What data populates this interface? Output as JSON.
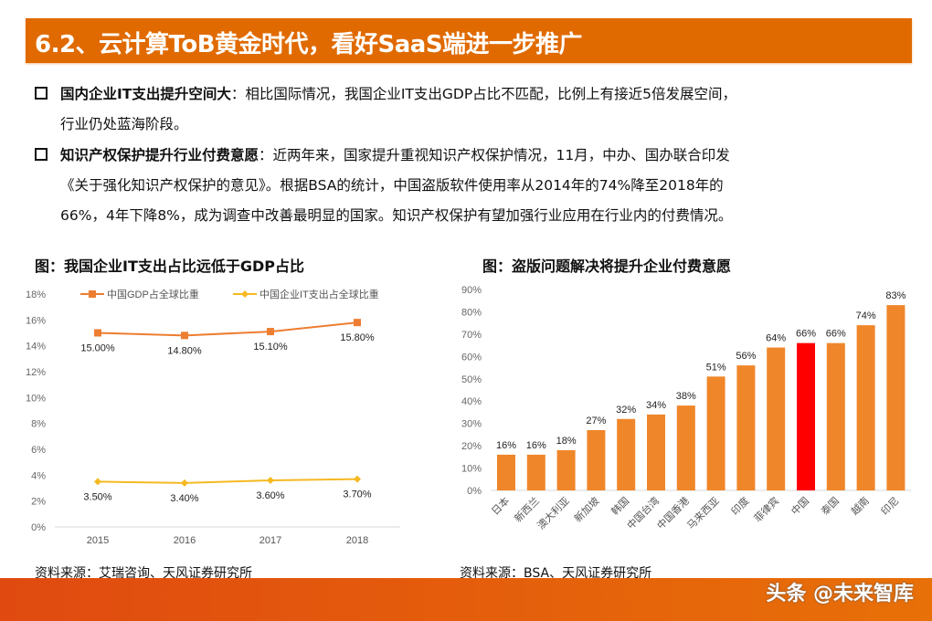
{
  "header": {
    "title": "6.2、云计算ToB黄金时代，看好SaaS端进一步推广"
  },
  "bullets": [
    {
      "bold": "国内企业IT支出提升空间大",
      "text": "：相比国际情况，我国企业IT支出GDP占比不匹配，比例上有接近5倍发展空间，",
      "cont": "行业仍处蓝海阶段。"
    },
    {
      "bold": "知识产权保护提升行业付费意愿",
      "text": "：近两年来，国家提升重视知识产权保护情况，11月，中办、国办联合印发",
      "cont": "《关于强化知识产权保护的意见》。根据BSA的统计，中国盗版软件使用率从2014年的74%降至2018年的",
      "cont2": "66%，4年下降8%，成为调查中改善最明显的国家。知识产权保护有望加强行业应用在行业内的付费情况。"
    }
  ],
  "footer": {
    "watermark": "头条 @未来智库"
  },
  "chart_data": [
    {
      "type": "line",
      "title": "图：我国企业IT支出占比远低于GDP占比",
      "source": "资料来源：艾瑞咨询、天风证券研究所",
      "categories": [
        "2015",
        "2016",
        "2017",
        "2018"
      ],
      "series": [
        {
          "name": "中国GDP占全球比重",
          "values": [
            15.0,
            14.8,
            15.1,
            15.8
          ],
          "labels": [
            "15.00%",
            "14.80%",
            "15.10%",
            "15.80%"
          ],
          "color": "#ed7d31",
          "marker": "square"
        },
        {
          "name": "中国企业IT支出占全球比重",
          "values": [
            3.5,
            3.4,
            3.6,
            3.7
          ],
          "labels": [
            "3.50%",
            "3.40%",
            "3.60%",
            "3.70%"
          ],
          "color": "#f5b921",
          "marker": "diamond"
        }
      ],
      "ylim": [
        0,
        18
      ],
      "yticks": [
        "0%",
        "2%",
        "4%",
        "6%",
        "8%",
        "10%",
        "12%",
        "14%",
        "16%",
        "18%"
      ],
      "legend": "top",
      "grid": false
    },
    {
      "type": "bar",
      "title": "图：盗版问题解决将提升企业付费意愿",
      "source": "资料来源：BSA、天风证券研究所",
      "categories": [
        "日本",
        "新西兰",
        "澳大利亚",
        "新加坡",
        "韩国",
        "中国台湾",
        "中国香港",
        "马来西亚",
        "印度",
        "菲律宾",
        "中国",
        "泰国",
        "越南",
        "印尼"
      ],
      "values": [
        16,
        16,
        18,
        27,
        32,
        34,
        38,
        51,
        56,
        64,
        66,
        66,
        74,
        83
      ],
      "labels": [
        "16%",
        "16%",
        "18%",
        "27%",
        "32%",
        "34%",
        "38%",
        "51%",
        "56%",
        "64%",
        "66%",
        "66%",
        "74%",
        "83%"
      ],
      "highlight": "中国",
      "colors": {
        "bar": "#f0862a",
        "highlight": "#ff0000"
      },
      "ylim": [
        0,
        90
      ],
      "yticks": [
        "0%",
        "10%",
        "20%",
        "30%",
        "40%",
        "50%",
        "60%",
        "70%",
        "80%",
        "90%"
      ],
      "grid": false
    }
  ]
}
